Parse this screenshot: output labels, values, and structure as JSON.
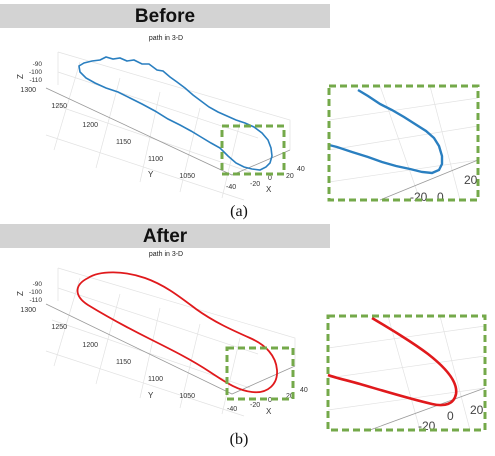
{
  "panel_a": {
    "banner": "Before",
    "plot_title": "path in 3-D",
    "caption": "(a)",
    "z_label": "Z",
    "z_ticks": [
      "-90",
      "-100",
      "-110"
    ],
    "y_label": "Y",
    "y_ticks": [
      "1300",
      "1250",
      "1200",
      "1150",
      "1100",
      "1050"
    ],
    "x_label": "X",
    "x_ticks": [
      "40",
      "20",
      "0",
      "-20",
      "-40"
    ],
    "zoom_ticks": [
      "20",
      "0",
      "-20"
    ],
    "path_color": "#2a7fc0"
  },
  "panel_b": {
    "banner": "After",
    "plot_title": "path in 3-D",
    "caption": "(b)",
    "z_label": "Z",
    "z_ticks": [
      "-90",
      "-100",
      "-110"
    ],
    "y_label": "Y",
    "y_ticks": [
      "1300",
      "1250",
      "1200",
      "1150",
      "1100",
      "1050"
    ],
    "x_label": "X",
    "x_ticks": [
      "40",
      "20",
      "0",
      "-20",
      "-40"
    ],
    "zoom_ticks": [
      "20",
      "0",
      "-20"
    ],
    "path_color": "#e0191c"
  },
  "colors": {
    "banner_bg": "#d3d3d3",
    "highlight_box": "#74a94a"
  }
}
